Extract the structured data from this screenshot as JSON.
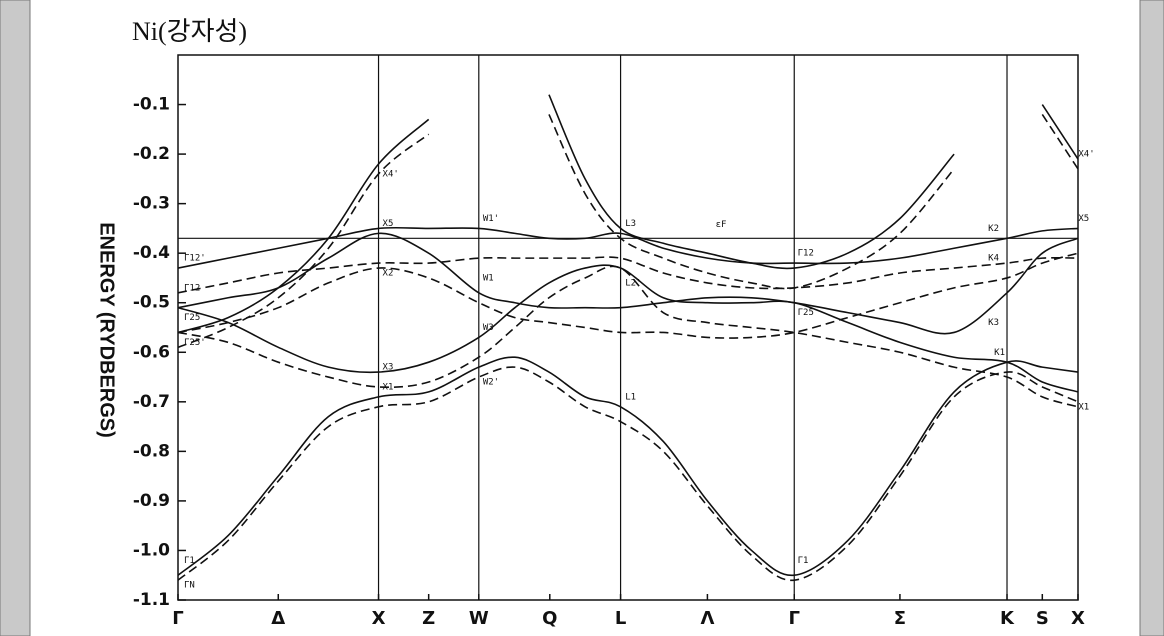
{
  "chart_data": {
    "type": "line",
    "title": "Ni(강자성)",
    "y_label": "ENERGY (RYDBERGS)",
    "xlim": [
      0,
      4.488
    ],
    "ylim": [
      -1.1,
      0
    ],
    "xticks": [
      {
        "value": 0,
        "label": "Γ"
      },
      {
        "value": 0.5,
        "label": "Δ"
      },
      {
        "value": 1,
        "label": "X"
      },
      {
        "value": 1.25,
        "label": "Z"
      },
      {
        "value": 1.5,
        "label": "W"
      },
      {
        "value": 1.854,
        "label": "Q"
      },
      {
        "value": 2.207,
        "label": "L"
      },
      {
        "value": 2.64,
        "label": "Λ"
      },
      {
        "value": 3.073,
        "label": "Γ"
      },
      {
        "value": 3.6,
        "label": "Σ"
      },
      {
        "value": 4.134,
        "label": "K"
      },
      {
        "value": 4.31,
        "label": "S"
      },
      {
        "value": 4.488,
        "label": "X"
      }
    ],
    "yticks": [
      -0.1,
      -0.2,
      -0.3,
      -0.4,
      -0.5,
      -0.6,
      -0.7,
      -0.8,
      -0.9,
      {
        "value": -1,
        "label": "-1.0"
      },
      -1.1
    ],
    "vlines": [
      1,
      1.5,
      2.207,
      3.073,
      4.134
    ],
    "fermi_level": -0.37,
    "fermi_label": "εF",
    "x": [
      0,
      0.25,
      0.5,
      0.75,
      1,
      1.25,
      1.5,
      1.68,
      1.85,
      2.03,
      2.207,
      2.42,
      2.64,
      2.86,
      3.073,
      3.34,
      3.6,
      3.87,
      4.134,
      4.31,
      4.488
    ],
    "series": [
      {
        "color": "#111",
        "dashed": false,
        "values": [
          -1.05,
          -0.97,
          -0.85,
          -0.73,
          -0.69,
          -0.68,
          -0.63,
          -0.61,
          -0.64,
          -0.69,
          -0.71,
          -0.78,
          -0.9,
          -1.0,
          -1.05,
          -0.98,
          -0.84,
          -0.68,
          -0.62,
          -0.63,
          -0.64
        ]
      },
      {
        "color": "#111",
        "dashed": false,
        "values": [
          -0.51,
          -0.54,
          -0.59,
          -0.63,
          -0.64,
          -0.62,
          -0.57,
          -0.51,
          -0.46,
          -0.43,
          -0.43,
          -0.49,
          -0.5,
          -0.5,
          -0.5,
          -0.54,
          -0.58,
          -0.61,
          -0.62,
          -0.66,
          -0.68
        ]
      },
      {
        "color": "#111",
        "dashed": false,
        "values": [
          -0.43,
          -0.41,
          -0.39,
          -0.37,
          -0.35,
          -0.35,
          -0.35,
          -0.36,
          -0.37,
          -0.37,
          -0.36,
          -0.39,
          -0.41,
          -0.42,
          -0.42,
          -0.42,
          -0.41,
          -0.39,
          -0.37,
          -0.355,
          -0.35
        ]
      },
      {
        "color": "#111",
        "dashed": false,
        "values": [
          -0.51,
          -0.49,
          -0.47,
          -0.41,
          -0.36,
          -0.4,
          -0.48,
          -0.5,
          -0.51,
          -0.51,
          -0.51,
          -0.5,
          -0.49,
          -0.49,
          -0.5,
          -0.52,
          -0.54,
          -0.56,
          -0.48,
          -0.4,
          -0.37
        ]
      },
      {
        "color": "#111",
        "dashed": false,
        "values": [
          -0.56,
          -0.53,
          -0.47,
          -0.37,
          -0.22,
          -0.13,
          null,
          null,
          -0.08,
          -0.25,
          -0.35,
          -0.38,
          -0.4,
          -0.42,
          -0.43,
          -0.4,
          -0.33,
          -0.2,
          null,
          -0.1,
          -0.21
        ]
      },
      {
        "color": "#111",
        "dashed": true,
        "values": [
          -1.06,
          -0.98,
          -0.86,
          -0.75,
          -0.71,
          -0.7,
          -0.65,
          -0.63,
          -0.66,
          -0.71,
          -0.74,
          -0.8,
          -0.91,
          -1.01,
          -1.06,
          -0.99,
          -0.85,
          -0.69,
          -0.64,
          -0.67,
          -0.7
        ]
      },
      {
        "color": "#111",
        "dashed": true,
        "values": [
          -0.56,
          -0.58,
          -0.62,
          -0.65,
          -0.67,
          -0.66,
          -0.61,
          -0.55,
          -0.49,
          -0.45,
          -0.43,
          -0.52,
          -0.54,
          -0.55,
          -0.56,
          -0.58,
          -0.6,
          -0.63,
          -0.65,
          -0.69,
          -0.71
        ]
      },
      {
        "color": "#111",
        "dashed": true,
        "values": [
          -0.48,
          -0.46,
          -0.44,
          -0.43,
          -0.42,
          -0.42,
          -0.41,
          -0.41,
          -0.41,
          -0.41,
          -0.41,
          -0.44,
          -0.46,
          -0.47,
          -0.47,
          -0.46,
          -0.44,
          -0.43,
          -0.42,
          -0.41,
          -0.41
        ]
      },
      {
        "color": "#111",
        "dashed": true,
        "values": [
          -0.56,
          -0.54,
          -0.51,
          -0.46,
          -0.43,
          -0.45,
          -0.5,
          -0.53,
          -0.54,
          -0.55,
          -0.56,
          -0.56,
          -0.57,
          -0.57,
          -0.56,
          -0.53,
          -0.5,
          -0.47,
          -0.45,
          -0.42,
          -0.4
        ]
      },
      {
        "color": "#111",
        "dashed": true,
        "values": [
          -0.59,
          -0.55,
          -0.49,
          -0.39,
          -0.24,
          -0.16,
          null,
          null,
          -0.12,
          -0.28,
          -0.37,
          -0.41,
          -0.44,
          -0.46,
          -0.47,
          -0.43,
          -0.36,
          -0.23,
          null,
          -0.12,
          -0.23
        ]
      }
    ],
    "point_labels": [
      {
        "text": "Γ12'",
        "x": 0.03,
        "y": -0.41
      },
      {
        "text": "Γ12",
        "x": 0.03,
        "y": -0.47
      },
      {
        "text": "Γ25",
        "x": 0.03,
        "y": -0.53
      },
      {
        "text": "Γ25'",
        "x": 0.03,
        "y": -0.58
      },
      {
        "text": "Γ1",
        "x": 0.03,
        "y": -1.02
      },
      {
        "text": "ΓN",
        "x": 0.03,
        "y": -1.07
      },
      {
        "text": "X5",
        "x": 1.02,
        "y": -0.34
      },
      {
        "text": "X2",
        "x": 1.02,
        "y": -0.44
      },
      {
        "text": "X3",
        "x": 1.02,
        "y": -0.63
      },
      {
        "text": "X1",
        "x": 1.02,
        "y": -0.67
      },
      {
        "text": "X4'",
        "x": 1.02,
        "y": -0.24
      },
      {
        "text": "W1'",
        "x": 1.52,
        "y": -0.33
      },
      {
        "text": "W1",
        "x": 1.52,
        "y": -0.45
      },
      {
        "text": "W3",
        "x": 1.52,
        "y": -0.55
      },
      {
        "text": "W2'",
        "x": 1.52,
        "y": -0.66
      },
      {
        "text": "L3",
        "x": 2.23,
        "y": -0.34
      },
      {
        "text": "L2'",
        "x": 2.23,
        "y": -0.46
      },
      {
        "text": "L1",
        "x": 2.23,
        "y": -0.69
      },
      {
        "text": "Γ12",
        "x": 3.09,
        "y": -0.4
      },
      {
        "text": "Γ25",
        "x": 3.09,
        "y": -0.52
      },
      {
        "text": "Γ1",
        "x": 3.09,
        "y": -1.02
      },
      {
        "text": "K2",
        "x": 4.04,
        "y": -0.35
      },
      {
        "text": "K4",
        "x": 4.04,
        "y": -0.41
      },
      {
        "text": "K3",
        "x": 4.04,
        "y": -0.54
      },
      {
        "text": "K1",
        "x": 4.07,
        "y": -0.6
      },
      {
        "text": "X5",
        "x": 4.49,
        "y": -0.33
      },
      {
        "text": "X4'",
        "x": 4.49,
        "y": -0.2
      },
      {
        "text": "X1",
        "x": 4.49,
        "y": -0.71
      }
    ]
  }
}
